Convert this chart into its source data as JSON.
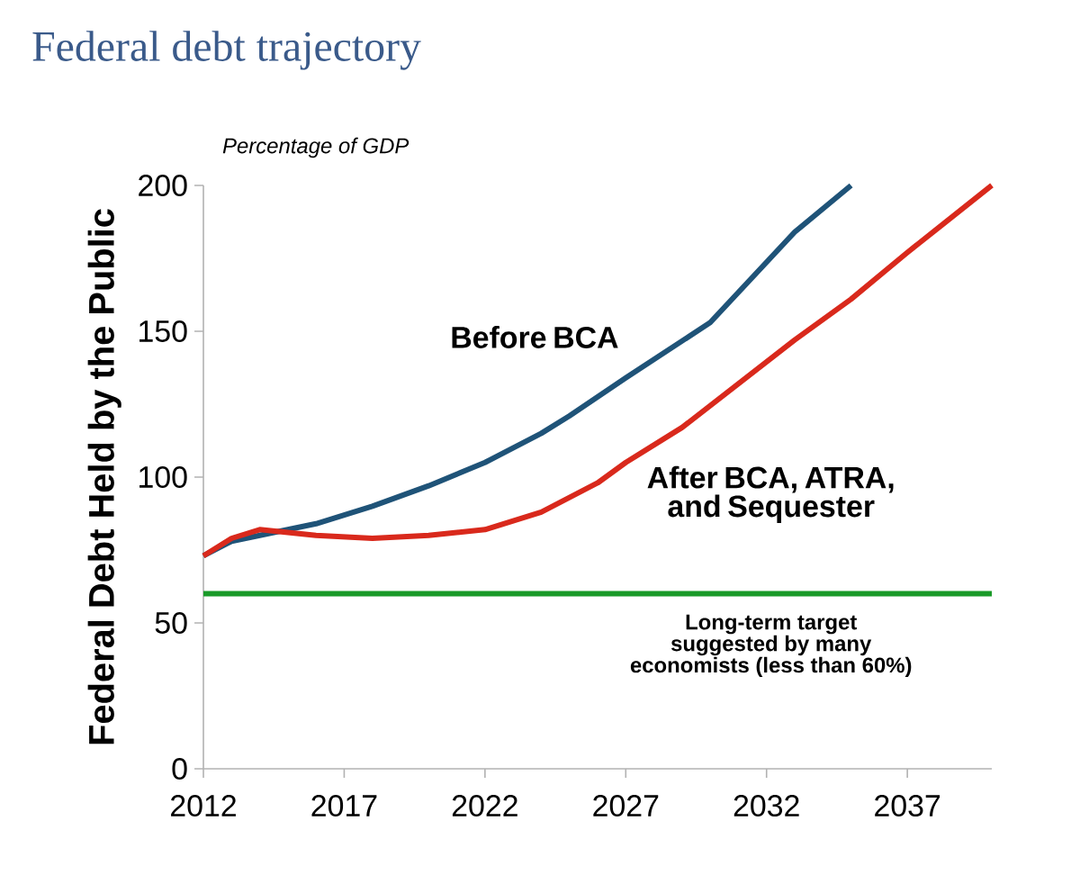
{
  "chart_data": {
    "type": "line",
    "title": "Federal debt trajectory",
    "subtitle": "Percentage of GDP",
    "ylabel": "Federal Debt Held by the Public",
    "x": [
      2012,
      2013,
      2014,
      2015,
      2016,
      2018,
      2020,
      2022,
      2024,
      2025,
      2027,
      2030,
      2033,
      2035
    ],
    "series": [
      {
        "name": "Before BCA",
        "color": "#1f5378",
        "values": [
          73,
          78,
          80,
          82,
          84,
          90,
          97,
          105,
          115,
          121,
          134,
          153,
          184,
          200
        ]
      },
      {
        "name": "After BCA, ATRA, and Sequester",
        "color": "#d9291c",
        "x": [
          2012,
          2013,
          2014,
          2015,
          2016,
          2018,
          2020,
          2022,
          2024,
          2026,
          2027,
          2029,
          2031,
          2033,
          2035,
          2037,
          2040
        ],
        "values": [
          73,
          79,
          82,
          81,
          80,
          79,
          80,
          82,
          88,
          98,
          105,
          117,
          132,
          147,
          161,
          177,
          200
        ]
      }
    ],
    "xlim": [
      2012,
      2040
    ],
    "xticks": [
      2012,
      2017,
      2022,
      2027,
      2032,
      2037
    ],
    "ylim": [
      0,
      200
    ],
    "yticks": [
      0,
      50,
      100,
      150,
      200
    ],
    "ref_lines": [
      {
        "axis": "y",
        "value": 60,
        "label": "Long-term target suggested by many economists (less than 60%)",
        "color": "#1a9a29"
      }
    ]
  }
}
